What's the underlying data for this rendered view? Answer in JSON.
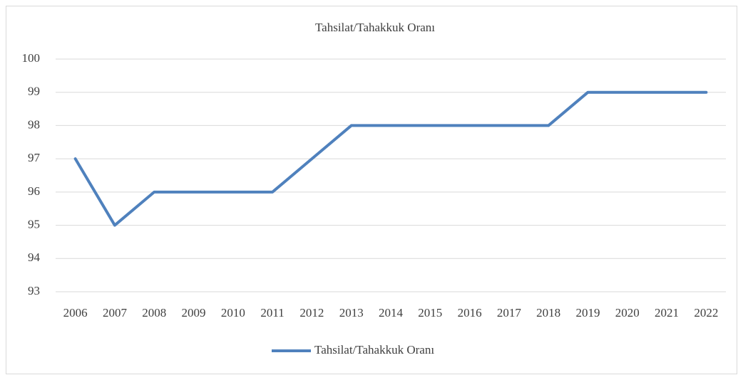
{
  "chart_data": {
    "type": "line",
    "title": "Tahsilat/Tahakkuk Oranı",
    "categories": [
      "2006",
      "2007",
      "2008",
      "2009",
      "2010",
      "2011",
      "2012",
      "2013",
      "2014",
      "2015",
      "2016",
      "2017",
      "2018",
      "2019",
      "2020",
      "2021",
      "2022"
    ],
    "series": [
      {
        "name": "Tahsilat/Tahakkuk Oranı",
        "color": "#4f81bd",
        "values": [
          97,
          95,
          96,
          96,
          96,
          96,
          97,
          98,
          98,
          98,
          98,
          98,
          98,
          99,
          99,
          99,
          99
        ]
      }
    ],
    "ylim": [
      93,
      100
    ],
    "yticks": [
      93,
      94,
      95,
      96,
      97,
      98,
      99,
      100
    ],
    "grid": true,
    "legend": "bottom"
  }
}
